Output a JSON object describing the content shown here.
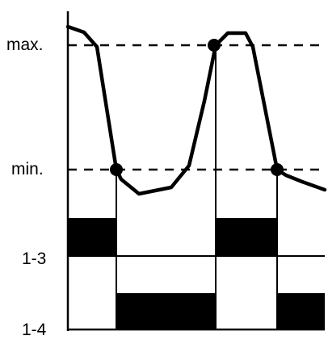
{
  "labels": {
    "max": "max.",
    "min": "min.",
    "relay_1_3": "1-3",
    "relay_1_4": "1-4"
  },
  "colors": {
    "ink": "#000000",
    "background": "#ffffff"
  }
}
